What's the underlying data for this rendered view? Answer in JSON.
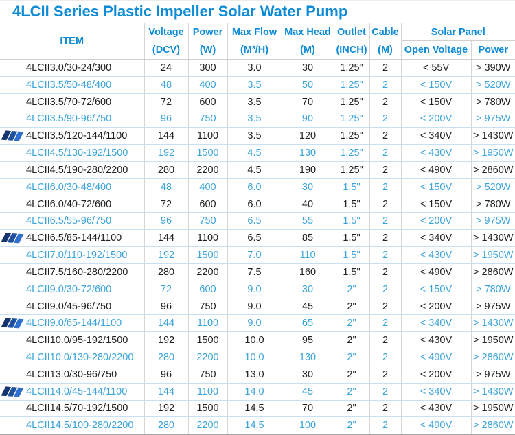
{
  "title": "4LCII Series Plastic Impeller Solar Water Pump",
  "colors": {
    "title_blue": "#0d8bd6",
    "header_blue": "#0d8bd6",
    "row_highlight_blue": "#3ba4da",
    "row_black": "#212121",
    "row_separator": "#c9dff2",
    "column_separator": "#d6d6d6"
  },
  "header": {
    "item": "ITEM",
    "cols": [
      {
        "line1": "Voltage",
        "line2": "(DCV)"
      },
      {
        "line1": "Power",
        "line2": "(W)"
      },
      {
        "line1": "Max Flow",
        "line2": "(M³/H)"
      },
      {
        "line1": "Max Head",
        "line2": "(M)"
      },
      {
        "line1": "Outlet",
        "line2": "(INCH)"
      },
      {
        "line1": "Cable",
        "line2": "(M)"
      }
    ],
    "solar_group": "Solar Panel",
    "solar_sub": [
      "Open Voltage",
      "Power"
    ]
  },
  "table": {
    "rows": [
      {
        "cells": [
          "4LCII3.0/30-24/300",
          "24",
          "300",
          "3.0",
          "30",
          "1.25\"",
          "2",
          "< 55V",
          "> 390W"
        ],
        "blue": false,
        "icon": false
      },
      {
        "cells": [
          "4LCII3.5/50-48/400",
          "48",
          "400",
          "3.5",
          "50",
          "1.25\"",
          "2",
          "< 150V",
          "> 520W"
        ],
        "blue": true,
        "icon": false
      },
      {
        "cells": [
          "4LCII3.5/70-72/600",
          "72",
          "600",
          "3.5",
          "70",
          "1.25\"",
          "2",
          "< 150V",
          "> 780W"
        ],
        "blue": false,
        "icon": false
      },
      {
        "cells": [
          "4LCII3.5/90-96/750",
          "96",
          "750",
          "3.5",
          "90",
          "1.25\"",
          "2",
          "< 200V",
          "> 975W"
        ],
        "blue": true,
        "icon": false
      },
      {
        "cells": [
          "4LCII3.5/120-144/1100",
          "144",
          "1100",
          "3.5",
          "120",
          "1.25\"",
          "2",
          "< 340V",
          "> 1430W"
        ],
        "blue": false,
        "icon": true
      },
      {
        "cells": [
          "4LCII4.5/130-192/1500",
          "192",
          "1500",
          "4.5",
          "130",
          "1.25\"",
          "2",
          "< 430V",
          "> 1950W"
        ],
        "blue": true,
        "icon": false
      },
      {
        "cells": [
          "4LCII4.5/190-280/2200",
          "280",
          "2200",
          "4.5",
          "190",
          "1.25\"",
          "2",
          "< 490V",
          "> 2860W"
        ],
        "blue": false,
        "icon": false
      },
      {
        "cells": [
          "4LCII6.0/30-48/400",
          "48",
          "400",
          "6.0",
          "30",
          "1.5\"",
          "2",
          "< 150V",
          "> 520W"
        ],
        "blue": true,
        "icon": false
      },
      {
        "cells": [
          "4LCII6.0/40-72/600",
          "72",
          "600",
          "6.0",
          "40",
          "1.5\"",
          "2",
          "< 150V",
          "> 780W"
        ],
        "blue": false,
        "icon": false
      },
      {
        "cells": [
          "4LCII6.5/55-96/750",
          "96",
          "750",
          "6.5",
          "55",
          "1.5\"",
          "2",
          "< 200V",
          "> 975W"
        ],
        "blue": true,
        "icon": false
      },
      {
        "cells": [
          "4LCII6.5/85-144/1100",
          "144",
          "1100",
          "6.5",
          "85",
          "1.5\"",
          "2",
          "< 340V",
          "> 1430W"
        ],
        "blue": false,
        "icon": true
      },
      {
        "cells": [
          "4LCII7.0/110-192/1500",
          "192",
          "1500",
          "7.0",
          "110",
          "1.5\"",
          "2",
          "< 430V",
          "> 1950W"
        ],
        "blue": true,
        "icon": false
      },
      {
        "cells": [
          "4LCII7.5/160-280/2200",
          "280",
          "2200",
          "7.5",
          "160",
          "1.5\"",
          "2",
          "< 490V",
          "> 2860W"
        ],
        "blue": false,
        "icon": false
      },
      {
        "cells": [
          "4LCII9.0/30-72/600",
          "72",
          "600",
          "9.0",
          "30",
          "2\"",
          "2",
          "< 150V",
          "> 780W"
        ],
        "blue": true,
        "icon": false
      },
      {
        "cells": [
          "4LCII9.0/45-96/750",
          "96",
          "750",
          "9.0",
          "45",
          "2\"",
          "2",
          "< 200V",
          "> 975W"
        ],
        "blue": false,
        "icon": false
      },
      {
        "cells": [
          "4LCII9.0/65-144/1100",
          "144",
          "1100",
          "9.0",
          "65",
          "2\"",
          "2",
          "< 340V",
          "> 1430W"
        ],
        "blue": true,
        "icon": true
      },
      {
        "cells": [
          "4LCII10.0/95-192/1500",
          "192",
          "1500",
          "10.0",
          "95",
          "2\"",
          "2",
          "< 430V",
          "> 1950W"
        ],
        "blue": false,
        "icon": false
      },
      {
        "cells": [
          "4LCII10.0/130-280/2200",
          "280",
          "2200",
          "10.0",
          "130",
          "2\"",
          "2",
          "< 490V",
          "> 2860W"
        ],
        "blue": true,
        "icon": false
      },
      {
        "cells": [
          "4LCII13.0/30-96/750",
          "96",
          "750",
          "13.0",
          "30",
          "2\"",
          "2",
          "< 200V",
          "> 975W"
        ],
        "blue": false,
        "icon": false
      },
      {
        "cells": [
          "4LCII14.0/45-144/1100",
          "144",
          "1100",
          "14.0",
          "45",
          "2\"",
          "2",
          "< 340V",
          "> 1430W"
        ],
        "blue": true,
        "icon": true
      },
      {
        "cells": [
          "4LCII14.5/70-192/1500",
          "192",
          "1500",
          "14.5",
          "70",
          "2\"",
          "2",
          "< 430V",
          "> 1950W"
        ],
        "blue": false,
        "icon": false
      },
      {
        "cells": [
          "4LCII14.5/100-280/2200",
          "280",
          "2200",
          "14.5",
          "100",
          "2\"",
          "2",
          "< 490V",
          "> 2860W"
        ],
        "blue": true,
        "icon": false
      }
    ]
  },
  "icons": {
    "solar_panel": "solar-panel-icon"
  }
}
